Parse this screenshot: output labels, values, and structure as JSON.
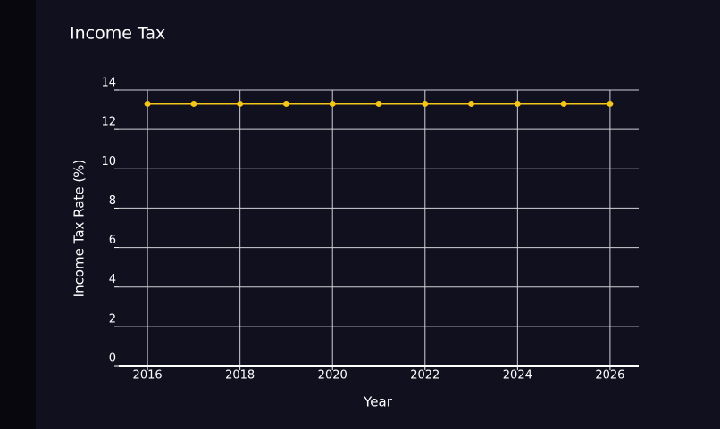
{
  "chart_data": {
    "type": "line",
    "title": "Income Tax",
    "x_label": "Year",
    "y_label": "Income Tax Rate (%)",
    "x": [
      2016,
      2017,
      2018,
      2019,
      2020,
      2021,
      2022,
      2023,
      2024,
      2025,
      2026
    ],
    "series": [
      {
        "color": "#f5c518",
        "values": [
          13.3,
          13.3,
          13.3,
          13.3,
          13.3,
          13.3,
          13.3,
          13.3,
          13.3,
          13.3,
          13.3
        ]
      }
    ],
    "xlim": [
      2015.38,
      2026.62
    ],
    "xticks": [
      2016,
      2018,
      2020,
      2022,
      2024,
      2026
    ],
    "ylim": [
      0,
      14
    ],
    "yticks": [
      0,
      2,
      4,
      6,
      8,
      10,
      12,
      14
    ],
    "grid": true
  }
}
